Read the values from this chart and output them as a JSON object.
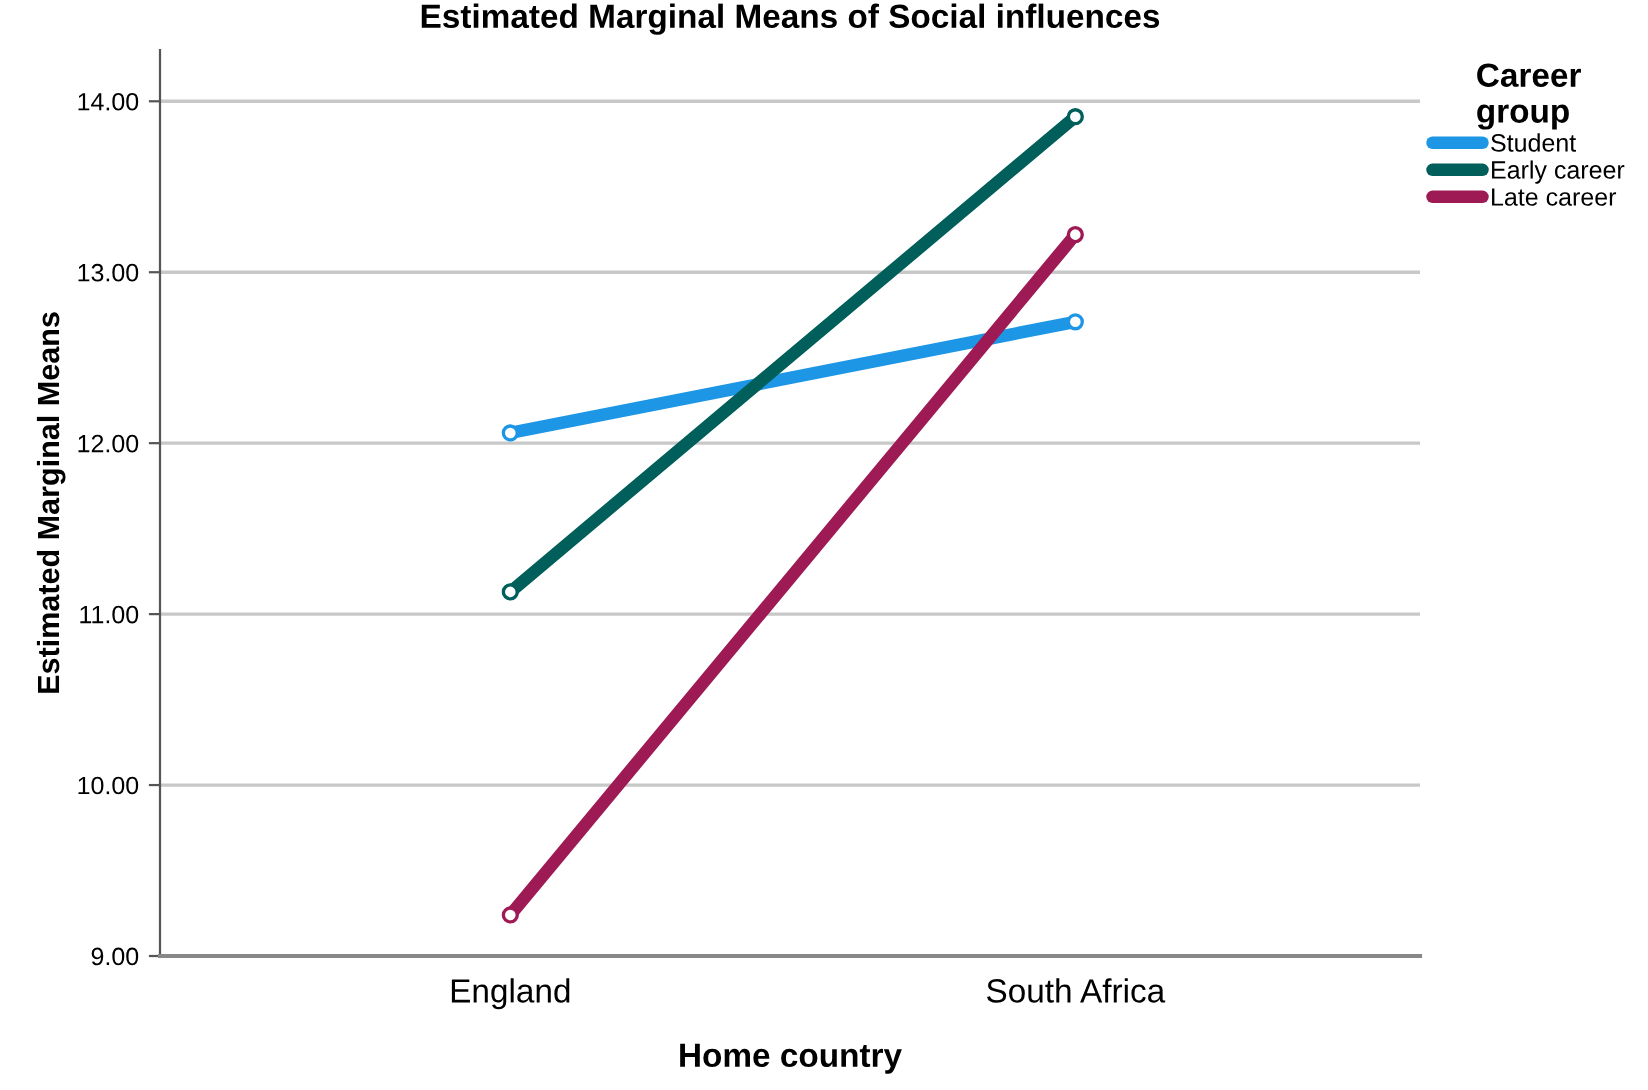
{
  "chart_data": {
    "type": "line",
    "title": "Estimated Marginal Means of Social influences",
    "xlabel": "Home country",
    "ylabel": "Estimated Marginal Means",
    "legend_title": "Career\ngroup",
    "categories": [
      "England",
      "South Africa"
    ],
    "series": [
      {
        "name": "Student",
        "color": "#1e96e6",
        "values": [
          12.06,
          12.71
        ]
      },
      {
        "name": "Early career",
        "color": "#005f5a",
        "values": [
          11.13,
          13.91
        ]
      },
      {
        "name": "Late career",
        "color": "#9e1a55",
        "values": [
          9.24,
          13.22
        ]
      }
    ],
    "ylim": [
      9,
      14.3
    ],
    "yticks": [
      {
        "value": 9,
        "label": "9.00"
      },
      {
        "value": 10,
        "label": "10.00"
      },
      {
        "value": 11,
        "label": "11.00"
      },
      {
        "value": 12,
        "label": "12.00"
      },
      {
        "value": 13,
        "label": "13.00"
      },
      {
        "value": 14,
        "label": "14.00"
      }
    ],
    "grid": "y",
    "legend": "right",
    "marker": "circle",
    "line_style": "solid"
  }
}
